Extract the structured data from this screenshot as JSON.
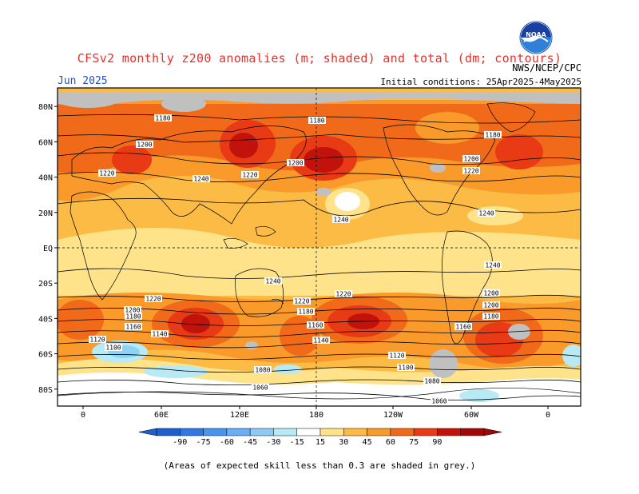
{
  "header": {
    "title": "CFSv2 monthly z200 anomalies (m; shaded) and total (dm; contours)",
    "month": "Jun 2025",
    "initial_conditions": "Initial conditions: 25Apr2025-4May2025",
    "organization": "NWS/NCEP/CPC",
    "logo_text": "NOAA"
  },
  "map": {
    "lat_labels": [
      "80N",
      "60N",
      "40N",
      "20N",
      "EQ",
      "20S",
      "40S",
      "60S",
      "80S"
    ],
    "lon_labels": [
      "0",
      "60E",
      "120E",
      "180",
      "120W",
      "60W",
      "0"
    ],
    "contour_labels": [
      "1180",
      "1180",
      "1180",
      "1200",
      "1200",
      "1200",
      "1220",
      "1220",
      "1220",
      "1240",
      "1240",
      "1240",
      "1240",
      "1240",
      "1220",
      "1220",
      "1220",
      "1200",
      "1200",
      "1200",
      "1180",
      "1180",
      "1180",
      "1160",
      "1160",
      "1160",
      "1140",
      "1140",
      "1120",
      "1120",
      "1100",
      "1100",
      "1080",
      "1080",
      "1060",
      "1060"
    ],
    "colors": {
      "grey_low_skill": "#c0c0c0",
      "pos_15": "#ffe38a",
      "pos_30": "#fcbb45",
      "pos_45": "#f99a2a",
      "pos_60": "#f06a1a",
      "pos_75": "#e83a14",
      "pos_90": "#c2120c",
      "neg_15": "#b8eaf6",
      "neg_30": "#8fd3f4"
    }
  },
  "colorbar": {
    "ticks": [
      "-90",
      "-75",
      "-60",
      "-45",
      "-30",
      "-15",
      "15",
      "30",
      "45",
      "60",
      "75",
      "90"
    ],
    "colors": [
      "#1e5fd0",
      "#2f78e2",
      "#4a94ee",
      "#6caef4",
      "#8fcaf6",
      "#b8eaf6",
      "#ffffff",
      "#ffe38a",
      "#fcbb45",
      "#f99a2a",
      "#f06a1a",
      "#e83a14",
      "#c2120c",
      "#a00808"
    ]
  },
  "footnote": "(Areas of expected skill less than 0.3 are shaded in grey.)"
}
